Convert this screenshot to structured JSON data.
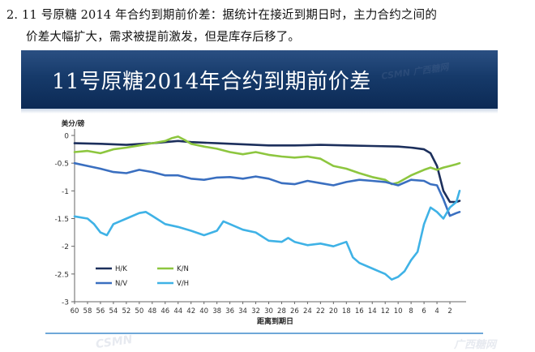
{
  "paragraph": {
    "line1": "2. 11 号原糖 2014 年合约到期前价差：据统计在接近到期日时，主力合约之间的",
    "line2": "价差大幅扩大，需求被提前激发，但是库存后移了。"
  },
  "slide": {
    "title": "11号原糖2014年合约到期前价差"
  },
  "watermarks": {
    "top": "CSMN 广西糖网",
    "bottom_left": "CSMN",
    "bottom_right": "广西糖网"
  },
  "colors": {
    "HK": "#1c2f5c",
    "KN": "#8dc63f",
    "NV": "#3a6fc0",
    "VH": "#3fb2e6"
  },
  "chart_data": {
    "type": "line",
    "title": "",
    "ylabel": "美分/磅",
    "xlabel": "距离到期日",
    "x_reversed": true,
    "xlim": [
      60,
      0
    ],
    "ylim": [
      -3,
      0
    ],
    "y_ticks": [
      0,
      -0.5,
      -1,
      -1.5,
      -2,
      -2.5,
      -3
    ],
    "y_tick_labels": [
      "0",
      "-0.5",
      "-1",
      "-1.5",
      "-2",
      "-2.5",
      "-3"
    ],
    "x_ticks": [
      60,
      58,
      56,
      54,
      52,
      50,
      48,
      46,
      44,
      42,
      40,
      38,
      36,
      34,
      32,
      30,
      28,
      26,
      24,
      22,
      20,
      18,
      16,
      14,
      12,
      10,
      8,
      6,
      4,
      2
    ],
    "x_tick_labels": [
      "60",
      "58",
      "56",
      "54",
      "52",
      "50",
      "48",
      "46",
      "44",
      "42",
      "40",
      "38",
      "36",
      "34",
      "32",
      "30",
      "28",
      "26",
      "24",
      "22",
      "20",
      "18",
      "16",
      "14",
      "12",
      "10",
      "8",
      "6",
      "4",
      "2"
    ],
    "legend": {
      "placement": "bottom-left",
      "entries": [
        "H/K",
        "K/N",
        "N/V",
        "V/H"
      ]
    },
    "series": [
      {
        "name": "H/K",
        "x": [
          60,
          56,
          52,
          48,
          46,
          44,
          42,
          38,
          34,
          30,
          26,
          22,
          18,
          14,
          10,
          8,
          6,
          5,
          4,
          3,
          2,
          1,
          0.5
        ],
        "y": [
          -0.14,
          -0.15,
          -0.17,
          -0.14,
          -0.12,
          -0.1,
          -0.12,
          -0.14,
          -0.16,
          -0.18,
          -0.18,
          -0.17,
          -0.18,
          -0.19,
          -0.2,
          -0.22,
          -0.25,
          -0.32,
          -0.55,
          -1.0,
          -1.2,
          -1.2,
          -1.18
        ]
      },
      {
        "name": "K/N",
        "x": [
          60,
          58,
          56,
          54,
          52,
          50,
          48,
          46,
          45,
          44,
          43,
          42,
          40,
          38,
          36,
          34,
          32,
          30,
          28,
          26,
          24,
          22,
          20,
          18,
          16,
          14,
          12,
          11,
          10,
          8,
          6,
          5,
          4,
          3,
          2,
          1,
          0.5
        ],
        "y": [
          -0.3,
          -0.28,
          -0.32,
          -0.25,
          -0.22,
          -0.18,
          -0.14,
          -0.1,
          -0.05,
          -0.02,
          -0.08,
          -0.15,
          -0.2,
          -0.24,
          -0.3,
          -0.34,
          -0.3,
          -0.35,
          -0.38,
          -0.4,
          -0.38,
          -0.42,
          -0.55,
          -0.6,
          -0.68,
          -0.75,
          -0.8,
          -0.88,
          -0.85,
          -0.72,
          -0.62,
          -0.58,
          -0.62,
          -0.58,
          -0.55,
          -0.52,
          -0.5
        ]
      },
      {
        "name": "N/V",
        "x": [
          60,
          58,
          56,
          54,
          52,
          50,
          48,
          46,
          44,
          42,
          40,
          38,
          36,
          34,
          32,
          30,
          28,
          26,
          24,
          22,
          20,
          18,
          16,
          14,
          12,
          10,
          8,
          6,
          5,
          4,
          3,
          2,
          1,
          0.5
        ],
        "y": [
          -0.5,
          -0.55,
          -0.6,
          -0.66,
          -0.68,
          -0.62,
          -0.66,
          -0.72,
          -0.72,
          -0.78,
          -0.8,
          -0.76,
          -0.75,
          -0.78,
          -0.74,
          -0.78,
          -0.86,
          -0.88,
          -0.82,
          -0.86,
          -0.9,
          -0.84,
          -0.8,
          -0.82,
          -0.84,
          -0.9,
          -0.8,
          -0.82,
          -0.88,
          -0.9,
          -1.15,
          -1.45,
          -1.4,
          -1.38
        ]
      },
      {
        "name": "V/H",
        "x": [
          60,
          58,
          57,
          56,
          55,
          54,
          52,
          50,
          49,
          48,
          46,
          44,
          42,
          40,
          38,
          37,
          36,
          34,
          32,
          30,
          28,
          27,
          26,
          24,
          22,
          20,
          18,
          17,
          16,
          14,
          13,
          12,
          11,
          10,
          9,
          8,
          7,
          6,
          5,
          4,
          3,
          2,
          1,
          0.5
        ],
        "y": [
          -1.46,
          -1.5,
          -1.6,
          -1.75,
          -1.8,
          -1.6,
          -1.5,
          -1.4,
          -1.38,
          -1.45,
          -1.6,
          -1.65,
          -1.72,
          -1.8,
          -1.72,
          -1.55,
          -1.6,
          -1.7,
          -1.75,
          -1.9,
          -1.92,
          -1.85,
          -1.92,
          -1.98,
          -1.95,
          -2.0,
          -1.92,
          -2.2,
          -2.3,
          -2.4,
          -2.45,
          -2.5,
          -2.6,
          -2.55,
          -2.45,
          -2.25,
          -2.1,
          -1.6,
          -1.3,
          -1.38,
          -1.5,
          -1.3,
          -1.2,
          -1.0
        ]
      }
    ]
  }
}
